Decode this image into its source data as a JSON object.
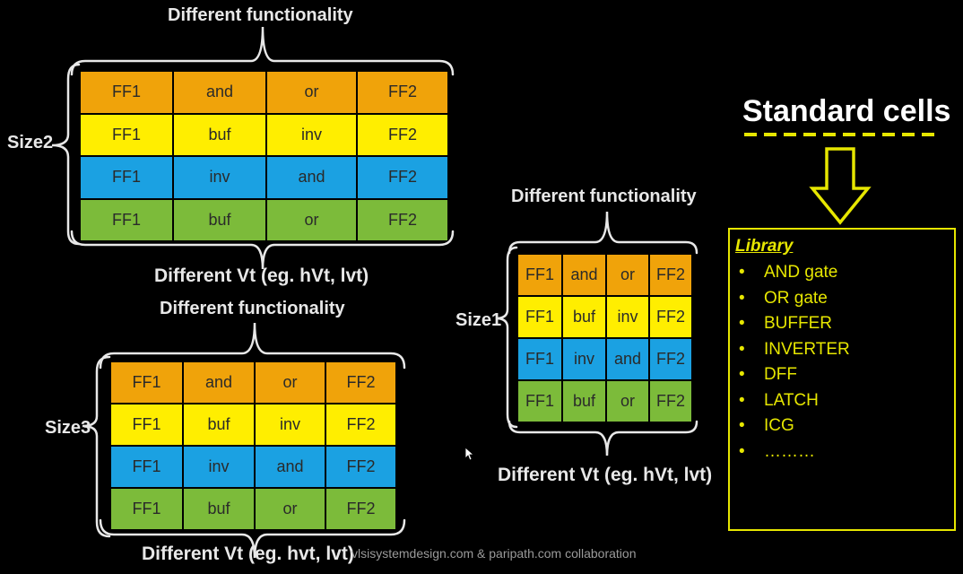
{
  "colors": {
    "orange": "#f0a30a",
    "yellow": "#ffee00",
    "blue": "#1ba1e2",
    "green": "#7cbb3a",
    "library_accent": "#e6e600",
    "label_text": "#e8e8e8"
  },
  "grid_rows": [
    [
      "FF1",
      "and",
      "or",
      "FF2"
    ],
    [
      "FF1",
      "buf",
      "inv",
      "FF2"
    ],
    [
      "FF1",
      "inv",
      "and",
      "FF2"
    ],
    [
      "FF1",
      "buf",
      "or",
      "FF2"
    ]
  ],
  "blocks": {
    "size2": {
      "size_label": "Size2",
      "top_label": "Different functionality",
      "bottom_label": "Different Vt (eg. hVt, lvt)"
    },
    "size1": {
      "size_label": "Size1",
      "top_label": "Different functionality",
      "bottom_label": "Different Vt (eg. hVt, lvt)"
    },
    "size3": {
      "size_label": "Size3",
      "top_label": "Different functionality",
      "bottom_label": "Different Vt (eg. hvt, lvt)"
    }
  },
  "standard_cells": {
    "title": "Standard cells",
    "library_title": "Library",
    "items": [
      "AND gate",
      "OR gate",
      "BUFFER",
      "INVERTER",
      "DFF",
      "LATCH",
      "ICG",
      "………"
    ],
    "bullet": "•"
  },
  "watermark": "vlsisystemdesign.com & paripath.com collaboration"
}
